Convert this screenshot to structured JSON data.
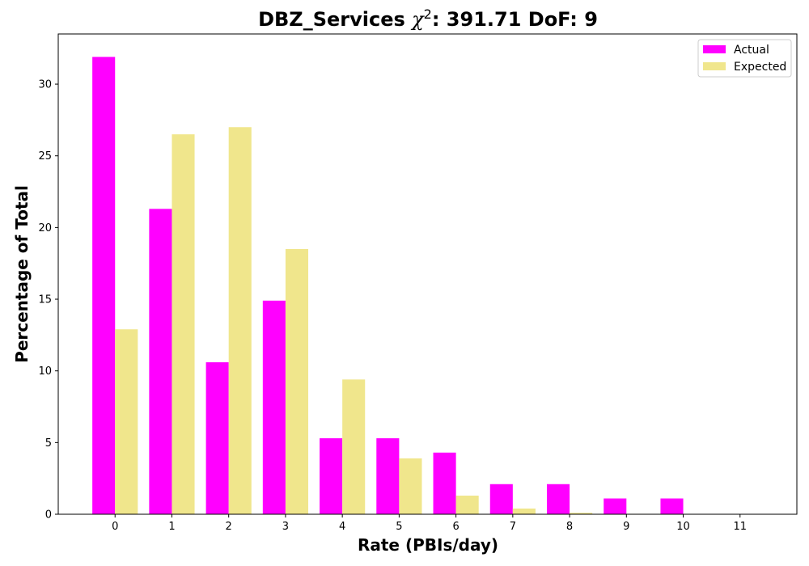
{
  "chart_data": {
    "type": "bar",
    "title_prefix": "DBZ_Services ",
    "title_chi": "χ",
    "title_sup": "2",
    "title_suffix": ": 391.71 DoF: 9",
    "xlabel": "Rate (PBIs/day)",
    "ylabel": "Percentage of Total",
    "categories": [
      "0",
      "1",
      "2",
      "3",
      "4",
      "5",
      "6",
      "7",
      "8",
      "9",
      "10",
      "11"
    ],
    "series": [
      {
        "name": "Actual",
        "color": "#ff00ff",
        "values": [
          31.9,
          21.3,
          10.6,
          14.9,
          5.3,
          5.3,
          4.3,
          2.1,
          2.1,
          1.1,
          1.1,
          0
        ]
      },
      {
        "name": "Expected",
        "color": "#f0e68c",
        "values": [
          12.9,
          26.5,
          27.0,
          18.5,
          9.4,
          3.9,
          1.3,
          0.4,
          0.1,
          0.03,
          0,
          0
        ]
      }
    ],
    "yticks": [
      0,
      5,
      10,
      15,
      20,
      25,
      30
    ],
    "ylim": [
      0,
      33.5
    ],
    "xlim": [
      -1,
      12
    ],
    "grid": false,
    "legend_position": "top-right"
  }
}
